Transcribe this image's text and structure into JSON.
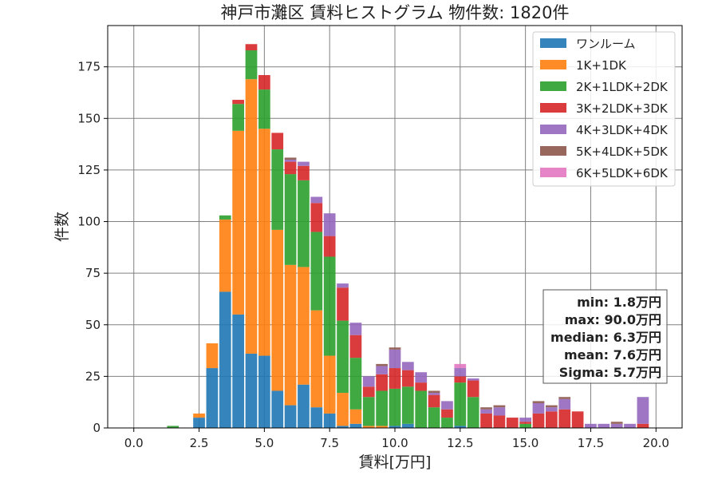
{
  "chart_data": {
    "type": "bar",
    "stacked": true,
    "title": "神戸市灘区 賃料ヒストグラム 物件数: 1820件",
    "xlabel": "賃料[万円]",
    "ylabel": "件数",
    "xlim": [
      -1.0,
      21.0
    ],
    "ylim": [
      0,
      195
    ],
    "xticks": [
      0.0,
      2.5,
      5.0,
      7.5,
      10.0,
      12.5,
      15.0,
      17.5,
      20.0
    ],
    "xtick_labels": [
      "0.0",
      "2.5",
      "5.0",
      "7.5",
      "10.0",
      "12.5",
      "15.0",
      "17.5",
      "20.0"
    ],
    "yticks": [
      0,
      25,
      50,
      75,
      100,
      125,
      150,
      175
    ],
    "ytick_labels": [
      "0",
      "25",
      "50",
      "75",
      "100",
      "125",
      "150",
      "175"
    ],
    "grid": true,
    "legend_position": "top-right",
    "bin_width": 0.5,
    "x": [
      1.5,
      2.0,
      2.5,
      3.0,
      3.5,
      4.0,
      4.5,
      5.0,
      5.5,
      6.0,
      6.5,
      7.0,
      7.5,
      8.0,
      8.5,
      9.0,
      9.5,
      10.0,
      10.5,
      11.0,
      11.5,
      12.0,
      12.5,
      13.0,
      13.5,
      14.0,
      14.5,
      15.0,
      15.5,
      16.0,
      16.5,
      17.0,
      17.5,
      18.0,
      18.5,
      19.0,
      19.5
    ],
    "series": [
      {
        "name": "ワンルーム",
        "color": "#1f77b4",
        "values": [
          0,
          0,
          5,
          29,
          66,
          55,
          36,
          35,
          18,
          11,
          21,
          10,
          7,
          1,
          2,
          0,
          0,
          1,
          2,
          0,
          0,
          0,
          1,
          0,
          0,
          0,
          0,
          0,
          0,
          0,
          0,
          0,
          0,
          0,
          0,
          0,
          0
        ]
      },
      {
        "name": "1K+1DK",
        "color": "#ff7f0e",
        "values": [
          0,
          0,
          2,
          12,
          35,
          89,
          133,
          110,
          78,
          68,
          57,
          47,
          28,
          16,
          7,
          1,
          1,
          0,
          0,
          0,
          0,
          0,
          0,
          0,
          0,
          0,
          0,
          0,
          0,
          0,
          0,
          0,
          0,
          0,
          0,
          0,
          0
        ]
      },
      {
        "name": "2K+1LDK+2DK",
        "color": "#2ca02c",
        "values": [
          1,
          0,
          0,
          0,
          2,
          13,
          14,
          19,
          39,
          44,
          42,
          38,
          48,
          35,
          25,
          14,
          17,
          18,
          18,
          18,
          10,
          5,
          21,
          15,
          0,
          0,
          0,
          2,
          0,
          0,
          0,
          0,
          0,
          0,
          0,
          0,
          0
        ]
      },
      {
        "name": "3K+2LDK+3DK",
        "color": "#d62728",
        "values": [
          0,
          0,
          0,
          0,
          0,
          2,
          3,
          7,
          8,
          6,
          7,
          14,
          10,
          16,
          11,
          5,
          8,
          10,
          8,
          4,
          6,
          4,
          3,
          8,
          7,
          6,
          5,
          1,
          7,
          8,
          9,
          8,
          0,
          0,
          0,
          0,
          2
        ]
      },
      {
        "name": "4K+3LDK+4DK",
        "color": "#9467bd",
        "values": [
          0,
          0,
          0,
          0,
          0,
          0,
          0,
          0,
          0,
          1,
          2,
          3,
          11,
          2,
          6,
          5,
          4,
          9,
          4,
          5,
          1,
          4,
          4,
          1,
          2,
          4,
          0,
          2,
          5,
          2,
          5,
          0,
          2,
          2,
          2,
          2,
          13
        ]
      },
      {
        "name": "5K+4LDK+5DK",
        "color": "#8c564b",
        "values": [
          0,
          0,
          0,
          0,
          0,
          0,
          0,
          0,
          0,
          1,
          0,
          0,
          0,
          0,
          0,
          0,
          1,
          1,
          0,
          0,
          1,
          0,
          0,
          0,
          1,
          1,
          0,
          0,
          1,
          1,
          1,
          0,
          0,
          0,
          1,
          0,
          0
        ]
      },
      {
        "name": "6K+5LDK+6DK",
        "color": "#e377c2",
        "values": [
          0,
          0,
          0,
          0,
          0,
          0,
          0,
          0,
          0,
          0,
          0,
          0,
          0,
          0,
          0,
          0,
          0,
          0,
          0,
          0,
          0,
          0,
          2,
          0,
          0,
          0,
          0,
          0,
          0,
          0,
          0,
          0,
          0,
          0,
          0,
          0,
          0
        ]
      }
    ],
    "stats": [
      "min: 1.8万円",
      "max: 90.0万円",
      "median: 6.3万円",
      "mean: 7.6万円",
      "Sigma: 5.7万円"
    ]
  }
}
